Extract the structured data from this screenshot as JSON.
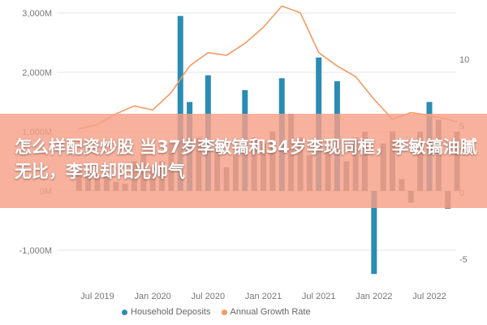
{
  "banner": {
    "title": "怎么样配资炒股 当37岁李敏镐和34岁李现同框，李敏镐油腻无比，李现却阳光帅气"
  },
  "colors": {
    "bar": "#2b8cb3",
    "bar_dim": "#6d7e8b",
    "line": "#f39a63",
    "grid": "#e6e6e6",
    "axis_text": "#777777",
    "banner": "#f6a087"
  },
  "chart_data": {
    "type": "bar",
    "title": "",
    "x_ticks": [
      "Jul 2019",
      "Jan 2020",
      "Jul 2020",
      "Jan 2021",
      "Jul 2021",
      "Jan 2022",
      "Jul 2022"
    ],
    "y_left_ticks": [
      "3,000M",
      "2,000M",
      "1,000M",
      "0M",
      "-1,000M"
    ],
    "y_left_range": [
      -1300,
      3100
    ],
    "y_right_ticks": [
      "10",
      "5",
      "0",
      "-5"
    ],
    "y_right_range": [
      -7,
      15
    ],
    "legend": [
      "Household Deposits",
      "Annual Growth Rate"
    ],
    "series": [
      {
        "name": "Household Deposits",
        "type": "bar",
        "dates": [
          "2019-05",
          "2019-06",
          "2019-07",
          "2019-08",
          "2019-09",
          "2019-10",
          "2019-11",
          "2019-12",
          "2020-01",
          "2020-02",
          "2020-03",
          "2020-04",
          "2020-05",
          "2020-06",
          "2020-07",
          "2020-08",
          "2020-09",
          "2020-10",
          "2020-11",
          "2020-12",
          "2021-01",
          "2021-02",
          "2021-03",
          "2021-04",
          "2021-05",
          "2021-06",
          "2021-07",
          "2021-08",
          "2021-09",
          "2021-10",
          "2021-11",
          "2021-12",
          "2022-01",
          "2022-02",
          "2022-03",
          "2022-04",
          "2022-05",
          "2022-06",
          "2022-07",
          "2022-08",
          "2022-09",
          "2022-10"
        ],
        "values": [
          350,
          300,
          280,
          250,
          150,
          120,
          500,
          600,
          400,
          500,
          800,
          2950,
          1500,
          900,
          1950,
          700,
          400,
          600,
          1700,
          900,
          800,
          1000,
          1900,
          1300,
          900,
          600,
          2250,
          700,
          1850,
          500,
          900,
          1000,
          -1400,
          800,
          1000,
          200,
          -200,
          1000,
          1500,
          1200,
          -300,
          1000
        ],
        "highlight": [
          false,
          false,
          false,
          false,
          false,
          false,
          false,
          false,
          false,
          false,
          false,
          true,
          true,
          false,
          true,
          false,
          false,
          false,
          true,
          false,
          false,
          false,
          true,
          false,
          false,
          false,
          true,
          false,
          true,
          false,
          false,
          false,
          true,
          false,
          false,
          false,
          false,
          false,
          true,
          false,
          false,
          false
        ]
      },
      {
        "name": "Annual Growth Rate",
        "type": "line",
        "dates": [
          "2019-05",
          "2019-07",
          "2019-09",
          "2019-11",
          "2020-01",
          "2020-03",
          "2020-05",
          "2020-07",
          "2020-09",
          "2020-11",
          "2021-01",
          "2021-03",
          "2021-05",
          "2021-07",
          "2021-09",
          "2021-11",
          "2022-01",
          "2022-03",
          "2022-05",
          "2022-07",
          "2022-09",
          "2022-10"
        ],
        "values": [
          4.8,
          5.1,
          5.9,
          6.5,
          6.2,
          7.5,
          9.5,
          10.5,
          10.3,
          11.2,
          12.4,
          14.0,
          13.5,
          10.5,
          9.5,
          8.7,
          7.0,
          5.5,
          6.0,
          5.8,
          5.5,
          5.3
        ]
      }
    ]
  }
}
